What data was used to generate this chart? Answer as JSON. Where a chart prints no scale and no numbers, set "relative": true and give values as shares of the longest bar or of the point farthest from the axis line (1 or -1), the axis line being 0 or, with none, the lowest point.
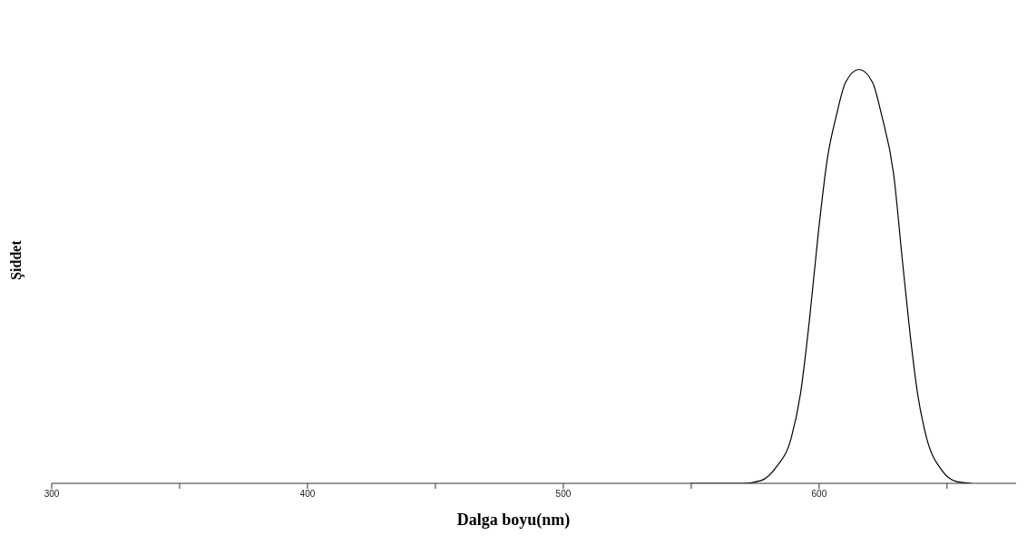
{
  "chart_data": {
    "type": "line",
    "xlabel": "Dalga boyu(nm)",
    "ylabel": "Şiddet",
    "relative": true,
    "x": [
      549.7,
      570,
      577.4,
      583.2,
      589.1,
      592.7,
      596.2,
      599.7,
      603.2,
      606.8,
      610.3,
      615.6,
      620.9,
      624.4,
      629.1,
      632.6,
      635.6,
      638.5,
      642.0,
      647.9,
      653.8,
      659.7
    ],
    "series": [
      {
        "color": "#000000",
        "values": [
          0,
          0,
          0.007,
          0.039,
          0.11,
          0.216,
          0.394,
          0.606,
          0.784,
          0.89,
          0.968,
          1,
          0.968,
          0.89,
          0.748,
          0.535,
          0.358,
          0.216,
          0.11,
          0.032,
          0.004,
          0
        ]
      }
    ],
    "xlim": [
      300,
      677
    ],
    "xticks": [
      300,
      {
        "value": 350,
        "label": null
      },
      400,
      {
        "value": 450,
        "label": null
      },
      500,
      {
        "value": 550,
        "label": null
      },
      600,
      {
        "value": 650,
        "label": null
      }
    ],
    "marker": "none",
    "line_style": "solid",
    "grid": false,
    "legend": false
  }
}
